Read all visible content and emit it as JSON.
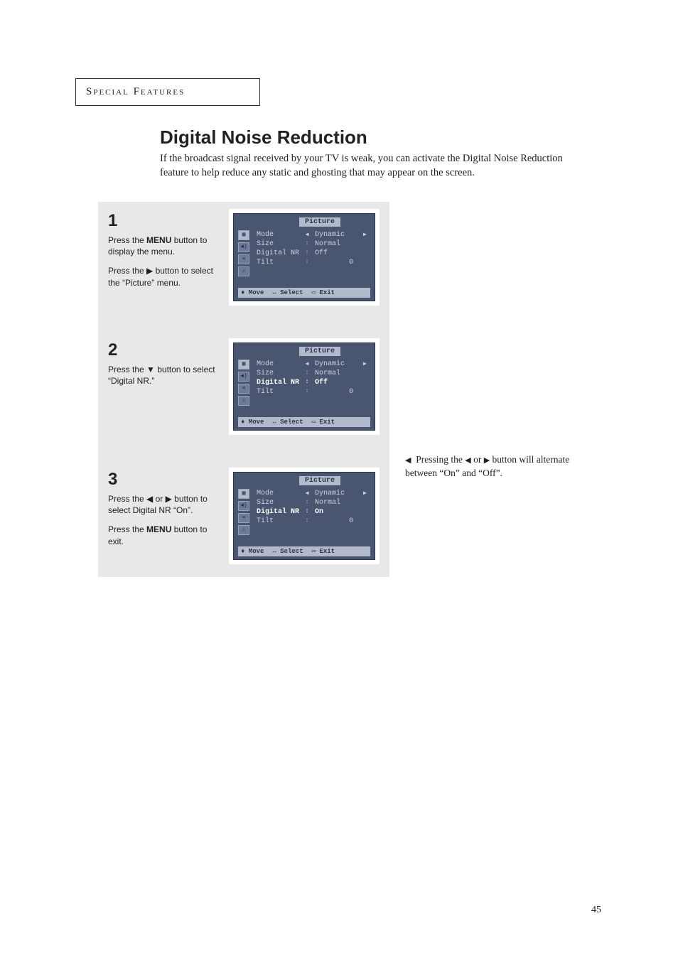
{
  "header": "Special Features",
  "title": "Digital Noise Reduction",
  "intro": "If the broadcast signal received by your TV is weak, you can activate the Digital Noise Reduction feature to help reduce any static and ghosting that may appear on the screen.",
  "steps": [
    {
      "num": "1",
      "paras": [
        "Press the <b>MENU</b> button to display the menu.",
        "Press the ▶ button to select the “Picture” menu."
      ],
      "osd": {
        "title": "Picture",
        "rows": [
          {
            "label": "Mode",
            "sep": "◀",
            "val": "Dynamic",
            "trail": "▶",
            "hl": false
          },
          {
            "label": "Size",
            "sep": ":",
            "val": "Normal",
            "trail": "",
            "hl": false
          },
          {
            "label": "Digital NR",
            "sep": ":",
            "val": "Off",
            "trail": "",
            "hl": false
          },
          {
            "label": "Tilt",
            "sep": ":",
            "val": "0",
            "trail": "",
            "hl": false,
            "num": true
          }
        ],
        "foot": [
          "♦ Move",
          "↔ Select",
          "▭ Exit"
        ]
      }
    },
    {
      "num": "2",
      "paras": [
        "Press the ▼ button to select “Digital NR.”"
      ],
      "osd": {
        "title": "Picture",
        "rows": [
          {
            "label": "Mode",
            "sep": "◀",
            "val": "Dynamic",
            "trail": "▶",
            "hl": false
          },
          {
            "label": "Size",
            "sep": ":",
            "val": "Normal",
            "trail": "",
            "hl": false
          },
          {
            "label": "Digital NR",
            "sep": ":",
            "val": "Off",
            "trail": "",
            "hl": true
          },
          {
            "label": "Tilt",
            "sep": ":",
            "val": "0",
            "trail": "",
            "hl": false,
            "num": true
          }
        ],
        "foot": [
          "♦ Move",
          "↔ Select",
          "▭ Exit"
        ]
      }
    },
    {
      "num": "3",
      "paras": [
        "Press the ◀ or ▶ button to select  Digital NR “On”.",
        "Press the <b>MENU</b> button to exit."
      ],
      "osd": {
        "title": "Picture",
        "rows": [
          {
            "label": "Mode",
            "sep": "◀",
            "val": "Dynamic",
            "trail": "▶",
            "hl": false
          },
          {
            "label": "Size",
            "sep": ":",
            "val": "Normal",
            "trail": "",
            "hl": false
          },
          {
            "label": "Digital NR",
            "sep": ":",
            "val": "On",
            "trail": "",
            "hl": true
          },
          {
            "label": "Tilt",
            "sep": ":",
            "val": "0",
            "trail": "",
            "hl": false,
            "num": true
          }
        ],
        "foot": [
          "♦ Move",
          "↔ Select",
          "▭ Exit"
        ]
      }
    }
  ],
  "note": "◀  Pressing the ◀ or ▶ button will alternate between “On” and “Off”.",
  "pageNum": "45",
  "colors": {
    "osd_bg": "#4a5570",
    "osd_light": "#b3b9cc",
    "step_bg": "#e8e8ea"
  }
}
